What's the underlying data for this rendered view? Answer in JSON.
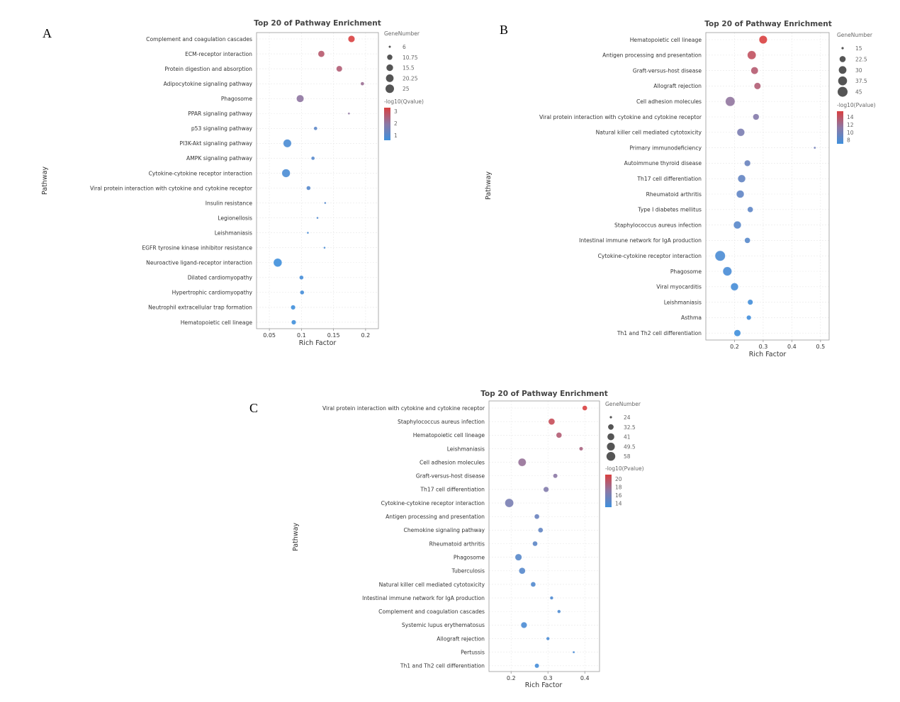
{
  "chart_data": [
    {
      "panel_label": "A",
      "type": "scatter",
      "title": "Top 20 of Pathway Enrichment",
      "xlabel": "Rich Factor",
      "ylabel": "Pathway",
      "xlim": [
        0.03,
        0.22
      ],
      "xticks": [
        0.05,
        0.1,
        0.15,
        0.2
      ],
      "xtick_labels": [
        "0.05",
        "0.1",
        "0.15",
        "0.2"
      ],
      "size_legend_title": "GeneNumber",
      "size_legend": [
        6,
        10.75,
        15.5,
        20.25,
        25
      ],
      "size_legend_labels": [
        "6",
        "10.75",
        "15.5",
        "20.25",
        "25"
      ],
      "color_legend_title": "-log10(Qvalue)",
      "color_legend_ticks": [
        1,
        2,
        3
      ],
      "color_legend_tick_labels": [
        "1",
        "2",
        "3"
      ],
      "color_range": [
        0.6,
        3.3
      ],
      "color_low": "#3f8fdc",
      "color_high": "#d94040",
      "points": [
        {
          "pathway": "Complement and coagulation cascades",
          "x": 0.178,
          "count": 16,
          "color_value": 3.3
        },
        {
          "pathway": "ECM-receptor interaction",
          "x": 0.131,
          "count": 15,
          "color_value": 2.7
        },
        {
          "pathway": "Protein digestion and absorption",
          "x": 0.159,
          "count": 13,
          "color_value": 2.6
        },
        {
          "pathway": "Adipocytokine signaling pathway",
          "x": 0.195,
          "count": 7,
          "color_value": 2.2
        },
        {
          "pathway": "Phagosome",
          "x": 0.098,
          "count": 19,
          "color_value": 2.0
        },
        {
          "pathway": "PPAR signaling pathway",
          "x": 0.174,
          "count": 6,
          "color_value": 2.0
        },
        {
          "pathway": "p53 signaling pathway",
          "x": 0.122,
          "count": 7,
          "color_value": 1.1
        },
        {
          "pathway": "PI3K-Akt signaling pathway",
          "x": 0.078,
          "count": 23,
          "color_value": 0.8
        },
        {
          "pathway": "AMPK signaling pathway",
          "x": 0.118,
          "count": 7,
          "color_value": 1.0
        },
        {
          "pathway": "Cytokine-cytokine receptor interaction",
          "x": 0.076,
          "count": 24,
          "color_value": 0.8
        },
        {
          "pathway": "Viral protein interaction with cytokine and cytokine receptor",
          "x": 0.111,
          "count": 8,
          "color_value": 1.0
        },
        {
          "pathway": "Insulin resistance",
          "x": 0.137,
          "count": 6,
          "color_value": 1.0
        },
        {
          "pathway": "Legionellosis",
          "x": 0.125,
          "count": 6,
          "color_value": 0.9
        },
        {
          "pathway": "Leishmaniasis",
          "x": 0.11,
          "count": 6,
          "color_value": 0.8
        },
        {
          "pathway": "EGFR tyrosine kinase inhibitor resistance",
          "x": 0.136,
          "count": 6,
          "color_value": 0.8
        },
        {
          "pathway": "Neuroactive ligand-receptor interaction",
          "x": 0.063,
          "count": 25,
          "color_value": 0.6
        },
        {
          "pathway": "Dilated cardiomyopathy",
          "x": 0.1,
          "count": 8,
          "color_value": 0.7
        },
        {
          "pathway": "Hypertrophic cardiomyopathy",
          "x": 0.101,
          "count": 8,
          "color_value": 0.7
        },
        {
          "pathway": "Neutrophil extracellular trap formation",
          "x": 0.087,
          "count": 9,
          "color_value": 0.6
        },
        {
          "pathway": "Hematopoietic cell lineage",
          "x": 0.088,
          "count": 9,
          "color_value": 0.6
        }
      ]
    },
    {
      "panel_label": "B",
      "type": "scatter",
      "title": "Top 20 of Pathway Enrichment",
      "xlabel": "Rich Factor",
      "ylabel": "Pathway",
      "xlim": [
        0.1,
        0.53
      ],
      "xticks": [
        0.2,
        0.3,
        0.4,
        0.5
      ],
      "xtick_labels": [
        "0.2",
        "0.3",
        "0.4",
        "0.5"
      ],
      "size_legend_title": "GeneNumber",
      "size_legend": [
        15,
        22.5,
        30,
        37.5,
        45
      ],
      "size_legend_labels": [
        "15",
        "22.5",
        "30",
        "37.5",
        "45"
      ],
      "color_legend_title": "-log10(Pvalue)",
      "color_legend_ticks": [
        8,
        10,
        12,
        14
      ],
      "color_legend_tick_labels": [
        "8",
        "10",
        "12",
        "14"
      ],
      "color_range": [
        7,
        15.5
      ],
      "color_low": "#3f8fdc",
      "color_high": "#d94040",
      "points": [
        {
          "pathway": "Hematopoietic cell lineage",
          "x": 0.3,
          "count": 33,
          "color_value": 15.5
        },
        {
          "pathway": "Antigen processing and presentation",
          "x": 0.26,
          "count": 36,
          "color_value": 14.2
        },
        {
          "pathway": "Graft-versus-host disease",
          "x": 0.27,
          "count": 28,
          "color_value": 13.5
        },
        {
          "pathway": "Allograft rejection",
          "x": 0.28,
          "count": 25,
          "color_value": 13.3
        },
        {
          "pathway": "Cell adhesion molecules",
          "x": 0.185,
          "count": 42,
          "color_value": 11.5
        },
        {
          "pathway": "Viral protein interaction with cytokine and cytokine receptor",
          "x": 0.275,
          "count": 23,
          "color_value": 10.8
        },
        {
          "pathway": "Natural killer cell mediated cytotoxicity",
          "x": 0.222,
          "count": 30,
          "color_value": 10.3
        },
        {
          "pathway": "Primary immunodeficiency",
          "x": 0.48,
          "count": 15,
          "color_value": 9.8
        },
        {
          "pathway": "Autoimmune thyroid disease",
          "x": 0.245,
          "count": 23,
          "color_value": 9.3
        },
        {
          "pathway": "Th17 cell differentiation",
          "x": 0.225,
          "count": 30,
          "color_value": 9.0
        },
        {
          "pathway": "Rheumatoid arthritis",
          "x": 0.22,
          "count": 30,
          "color_value": 8.8
        },
        {
          "pathway": "Type I diabetes mellitus",
          "x": 0.255,
          "count": 21,
          "color_value": 8.7
        },
        {
          "pathway": "Staphylococcus aureus infection",
          "x": 0.21,
          "count": 30,
          "color_value": 8.4
        },
        {
          "pathway": "Intestinal immune network for IgA production",
          "x": 0.245,
          "count": 21,
          "color_value": 8.3
        },
        {
          "pathway": "Cytokine-cytokine receptor interaction",
          "x": 0.15,
          "count": 48,
          "color_value": 7.6
        },
        {
          "pathway": "Phagosome",
          "x": 0.175,
          "count": 38,
          "color_value": 7.5
        },
        {
          "pathway": "Viral myocarditis",
          "x": 0.2,
          "count": 30,
          "color_value": 7.4
        },
        {
          "pathway": "Leishmaniasis",
          "x": 0.255,
          "count": 20,
          "color_value": 7.2
        },
        {
          "pathway": "Asthma",
          "x": 0.25,
          "count": 18,
          "color_value": 7.1
        },
        {
          "pathway": "Th1 and Th2 cell differentiation",
          "x": 0.21,
          "count": 25,
          "color_value": 7.0
        }
      ]
    },
    {
      "panel_label": "C",
      "type": "scatter",
      "title": "Top 20 of Pathway Enrichment",
      "xlabel": "Rich Factor",
      "ylabel": "Pathway",
      "xlim": [
        0.14,
        0.44
      ],
      "xticks": [
        0.2,
        0.3,
        0.4
      ],
      "xtick_labels": [
        "0.2",
        "0.3",
        "0.4"
      ],
      "size_legend_title": "GeneNumber",
      "size_legend": [
        24,
        32.5,
        41,
        49.5,
        58
      ],
      "size_legend_labels": [
        "24",
        "32.5",
        "41",
        "49.5",
        "58"
      ],
      "color_legend_title": "-log10(Pvalue)",
      "color_legend_ticks": [
        14,
        16,
        18,
        20
      ],
      "color_legend_tick_labels": [
        "14",
        "16",
        "18",
        "20"
      ],
      "color_range": [
        13,
        21
      ],
      "color_low": "#3f8fdc",
      "color_high": "#d94040",
      "points": [
        {
          "pathway": "Viral protein interaction with cytokine and cytokine receptor",
          "x": 0.4,
          "count": 30,
          "color_value": 21
        },
        {
          "pathway": "Staphylococcus aureus infection",
          "x": 0.31,
          "count": 38,
          "color_value": 20
        },
        {
          "pathway": "Hematopoietic cell lineage",
          "x": 0.33,
          "count": 33,
          "color_value": 19
        },
        {
          "pathway": "Leishmaniasis",
          "x": 0.39,
          "count": 26,
          "color_value": 18.5
        },
        {
          "pathway": "Cell adhesion molecules",
          "x": 0.23,
          "count": 50,
          "color_value": 17.5
        },
        {
          "pathway": "Graft-versus-host disease",
          "x": 0.32,
          "count": 28,
          "color_value": 17
        },
        {
          "pathway": "Th17 cell differentiation",
          "x": 0.295,
          "count": 32,
          "color_value": 16.5
        },
        {
          "pathway": "Cytokine-cytokine receptor interaction",
          "x": 0.195,
          "count": 57,
          "color_value": 16
        },
        {
          "pathway": "Antigen processing and presentation",
          "x": 0.27,
          "count": 30,
          "color_value": 15.2
        },
        {
          "pathway": "Chemokine signaling pathway",
          "x": 0.28,
          "count": 30,
          "color_value": 14.8
        },
        {
          "pathway": "Rheumatoid arthritis",
          "x": 0.265,
          "count": 30,
          "color_value": 14.5
        },
        {
          "pathway": "Phagosome",
          "x": 0.22,
          "count": 40,
          "color_value": 14.3
        },
        {
          "pathway": "Tuberculosis",
          "x": 0.23,
          "count": 38,
          "color_value": 14.2
        },
        {
          "pathway": "Natural killer cell mediated cytotoxicity",
          "x": 0.26,
          "count": 30,
          "color_value": 14
        },
        {
          "pathway": "Intestinal immune network for IgA production",
          "x": 0.31,
          "count": 25,
          "color_value": 13.8
        },
        {
          "pathway": "Complement and coagulation cascades",
          "x": 0.33,
          "count": 25,
          "color_value": 13.7
        },
        {
          "pathway": "Systemic lupus erythematosus",
          "x": 0.235,
          "count": 36,
          "color_value": 13.6
        },
        {
          "pathway": "Allograft rejection",
          "x": 0.3,
          "count": 25,
          "color_value": 13.5
        },
        {
          "pathway": "Pertussis",
          "x": 0.37,
          "count": 24,
          "color_value": 13.5
        },
        {
          "pathway": "Th1 and Th2 cell differentiation",
          "x": 0.27,
          "count": 28,
          "color_value": 13.3
        }
      ]
    }
  ]
}
